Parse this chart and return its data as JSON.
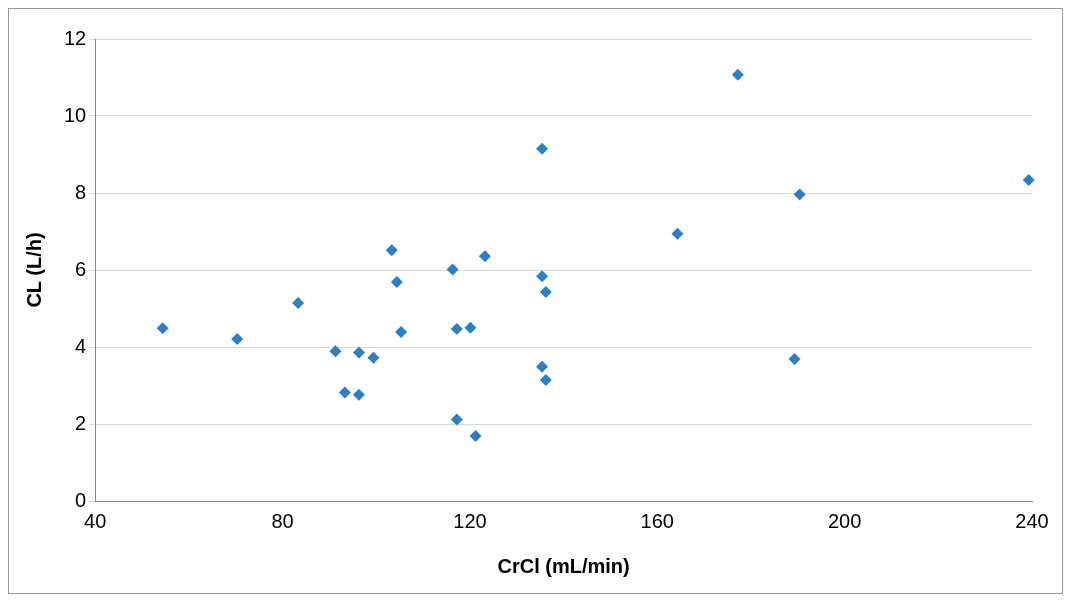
{
  "chart_data": {
    "type": "scatter",
    "xlabel": "CrCl (mL/min)",
    "ylabel": "CL (L/h)",
    "x": [
      54.4,
      70.3,
      83.3,
      91.3,
      93.3,
      96.3,
      96.3,
      99.4,
      103.3,
      104.4,
      105.3,
      116.3,
      117.2,
      117.2,
      120.1,
      121.2,
      123.2,
      135.4,
      135.4,
      136.2,
      135.4,
      136.2,
      164.3,
      177.2,
      190.4,
      189.3,
      239.3
    ],
    "series": [
      {
        "color": "#2e7ec4",
        "values": [
          4.49,
          4.21,
          5.14,
          3.89,
          2.82,
          3.86,
          2.76,
          3.72,
          6.51,
          5.69,
          4.39,
          6.01,
          4.47,
          2.12,
          4.5,
          1.69,
          6.36,
          9.15,
          5.84,
          5.43,
          3.49,
          3.14,
          6.94,
          11.07,
          7.96,
          3.69,
          8.34
        ]
      }
    ],
    "xlim": [
      40,
      240
    ],
    "xticks": [
      40,
      80,
      120,
      160,
      200,
      240
    ],
    "ylim": [
      0,
      12
    ],
    "yticks": [
      0,
      2,
      4,
      6,
      8,
      10,
      12
    ],
    "marker": "diamond",
    "grid": "y",
    "legend": false
  }
}
